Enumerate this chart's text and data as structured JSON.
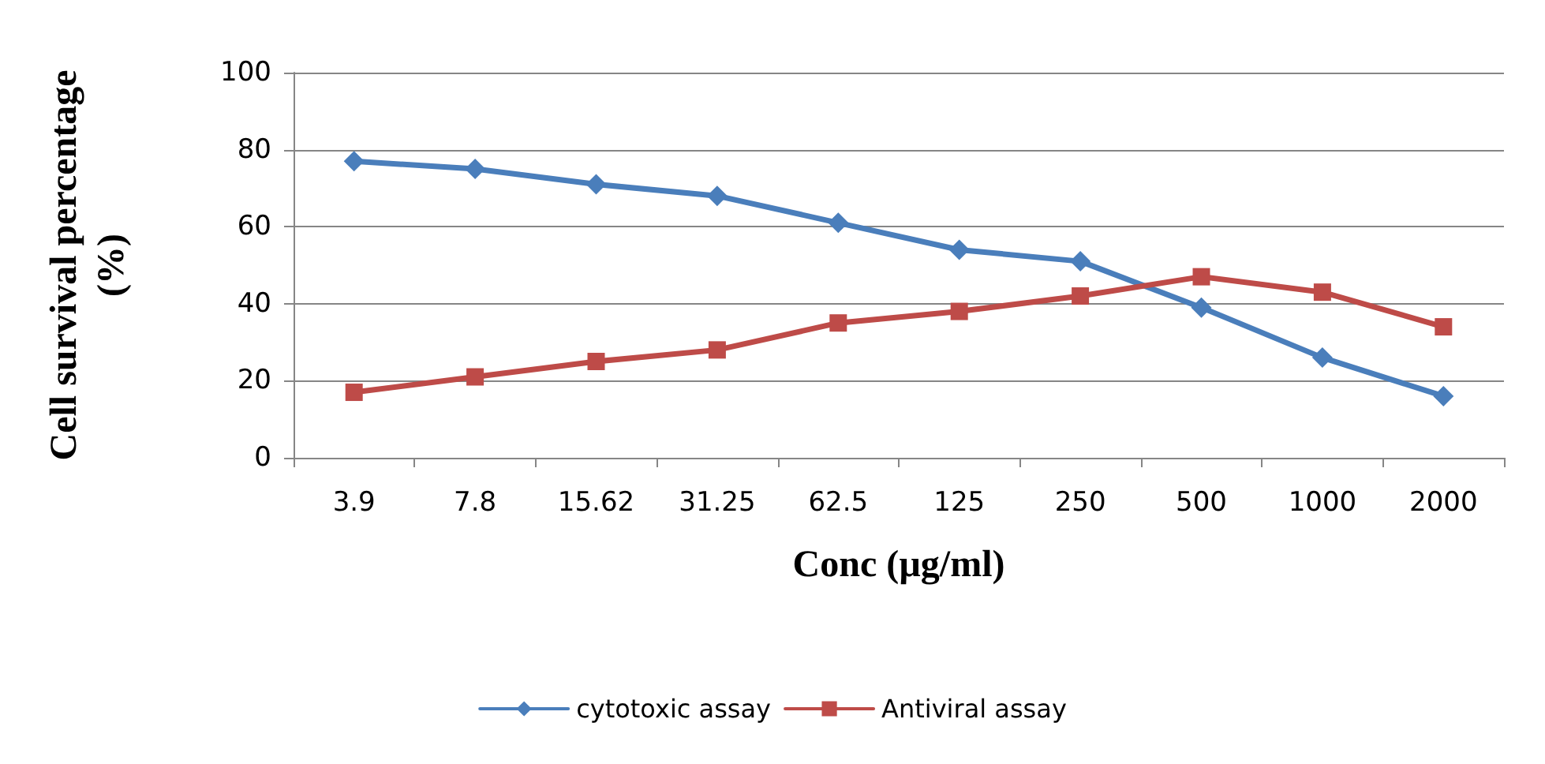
{
  "chart_data": {
    "type": "line",
    "xlabel": "Conc (µg/ml)",
    "ylabel": "Cell survival percentage\n(%)",
    "categories": [
      "3.9",
      "7.8",
      "15.62",
      "31.25",
      "62.5",
      "125",
      "250",
      "500",
      "1000",
      "2000"
    ],
    "series": [
      {
        "name": "cytotoxic assay",
        "color": "#4a7ebb",
        "marker": "diamond",
        "values": [
          77,
          75,
          71,
          68,
          61,
          54,
          51,
          39,
          26,
          16
        ]
      },
      {
        "name": "Antiviral assay",
        "color": "#be4b48",
        "marker": "square",
        "values": [
          17,
          21,
          25,
          28,
          35,
          38,
          42,
          47,
          43,
          34
        ]
      }
    ],
    "ylim": [
      0,
      100
    ],
    "yticks": [
      0,
      20,
      40,
      60,
      80,
      100
    ],
    "grid": "y",
    "legend": "bottom",
    "line_style": "solid"
  }
}
